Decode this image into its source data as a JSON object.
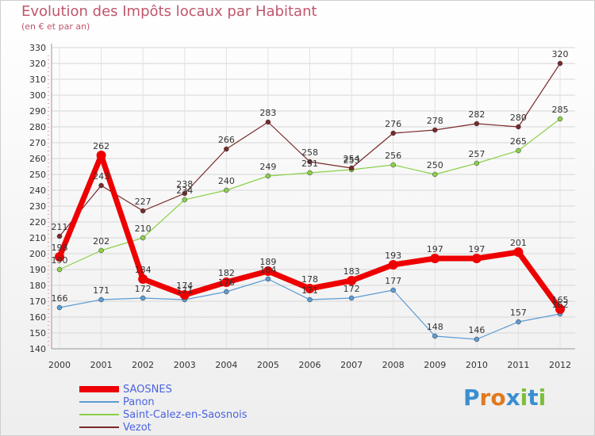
{
  "chart_data": {
    "type": "line",
    "title": "Evolution des Impôts locaux par Habitant",
    "subtitle": "(en € et par an)",
    "xlabel": "",
    "ylabel": "",
    "categories": [
      "2000",
      "2001",
      "2002",
      "2003",
      "2004",
      "2005",
      "2006",
      "2007",
      "2008",
      "2009",
      "2010",
      "2011",
      "2012"
    ],
    "ylim": [
      140,
      330
    ],
    "yticks": [
      140,
      150,
      160,
      170,
      180,
      190,
      200,
      210,
      220,
      230,
      240,
      250,
      260,
      270,
      280,
      290,
      300,
      310,
      320,
      330
    ],
    "grid": true,
    "legend_position": "bottom-left",
    "series": [
      {
        "name": "SAOSNES",
        "color": "#ee0000",
        "values": [
          198,
          262,
          184,
          174,
          182,
          189,
          178,
          183,
          193,
          197,
          197,
          201,
          165
        ]
      },
      {
        "name": "Panon",
        "color": "#5b9bd5",
        "values": [
          166,
          171,
          172,
          171,
          176,
          184,
          171,
          172,
          177,
          148,
          146,
          157,
          162
        ]
      },
      {
        "name": "Saint-Calez-en-Saosnois",
        "color": "#8bd04a",
        "values": [
          190,
          202,
          210,
          234,
          240,
          249,
          251,
          253,
          256,
          250,
          257,
          265,
          285
        ]
      },
      {
        "name": "Vezot",
        "color": "#7a2a2a",
        "values": [
          211,
          243,
          227,
          238,
          266,
          283,
          258,
          254,
          276,
          278,
          282,
          280,
          320
        ]
      }
    ]
  },
  "logo": {
    "text": "Proxiti",
    "letters": [
      "P",
      "r",
      "o",
      "x",
      "i",
      "t",
      "i"
    ],
    "colors": [
      "#3a8fd0",
      "#e07a1f",
      "#e07a1f",
      "#3a8fd0",
      "#7bbf3a",
      "#3a8fd0",
      "#7bbf3a"
    ]
  }
}
